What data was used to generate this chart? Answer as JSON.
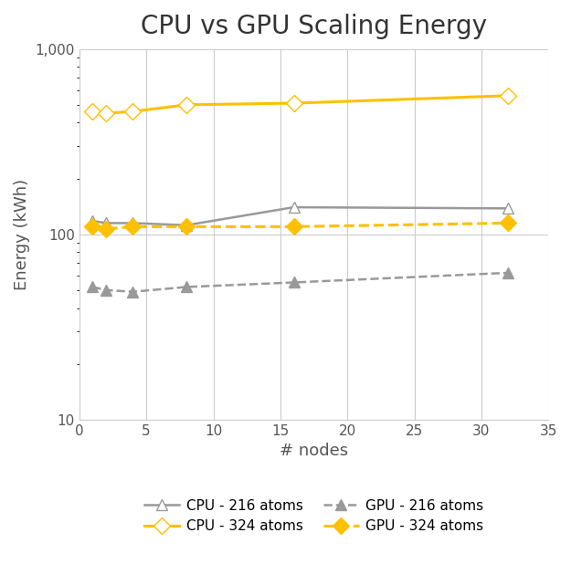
{
  "title": "CPU vs GPU Scaling Energy",
  "xlabel": "# nodes",
  "ylabel": "Energy (kWh)",
  "cpu_216_x": [
    1,
    2,
    4,
    8,
    16,
    32
  ],
  "cpu_216_y": [
    118,
    115,
    115,
    112,
    140,
    138
  ],
  "cpu_324_x": [
    1,
    2,
    4,
    8,
    16,
    32
  ],
  "cpu_324_y": [
    460,
    450,
    460,
    500,
    510,
    560
  ],
  "gpu_216_x": [
    1,
    2,
    4,
    8,
    16,
    32
  ],
  "gpu_216_y": [
    52,
    50,
    49,
    52,
    55,
    62
  ],
  "gpu_324_x": [
    1,
    2,
    4,
    8,
    16,
    32
  ],
  "gpu_324_y": [
    110,
    107,
    110,
    110,
    110,
    115
  ],
  "cpu_216_color": "#999999",
  "cpu_324_color": "#FFC000",
  "gpu_216_color": "#999999",
  "gpu_324_color": "#FFC000",
  "background_color": "#ffffff",
  "ylim_bottom": 10,
  "ylim_top": 1000,
  "xlim_left": 0,
  "xlim_right": 35,
  "title_fontsize": 20,
  "axis_fontsize": 13,
  "legend_fontsize": 11,
  "legend_labels": [
    "CPU - 216 atoms",
    "CPU - 324 atoms",
    "GPU - 216 atoms",
    "GPU - 324 atoms"
  ]
}
